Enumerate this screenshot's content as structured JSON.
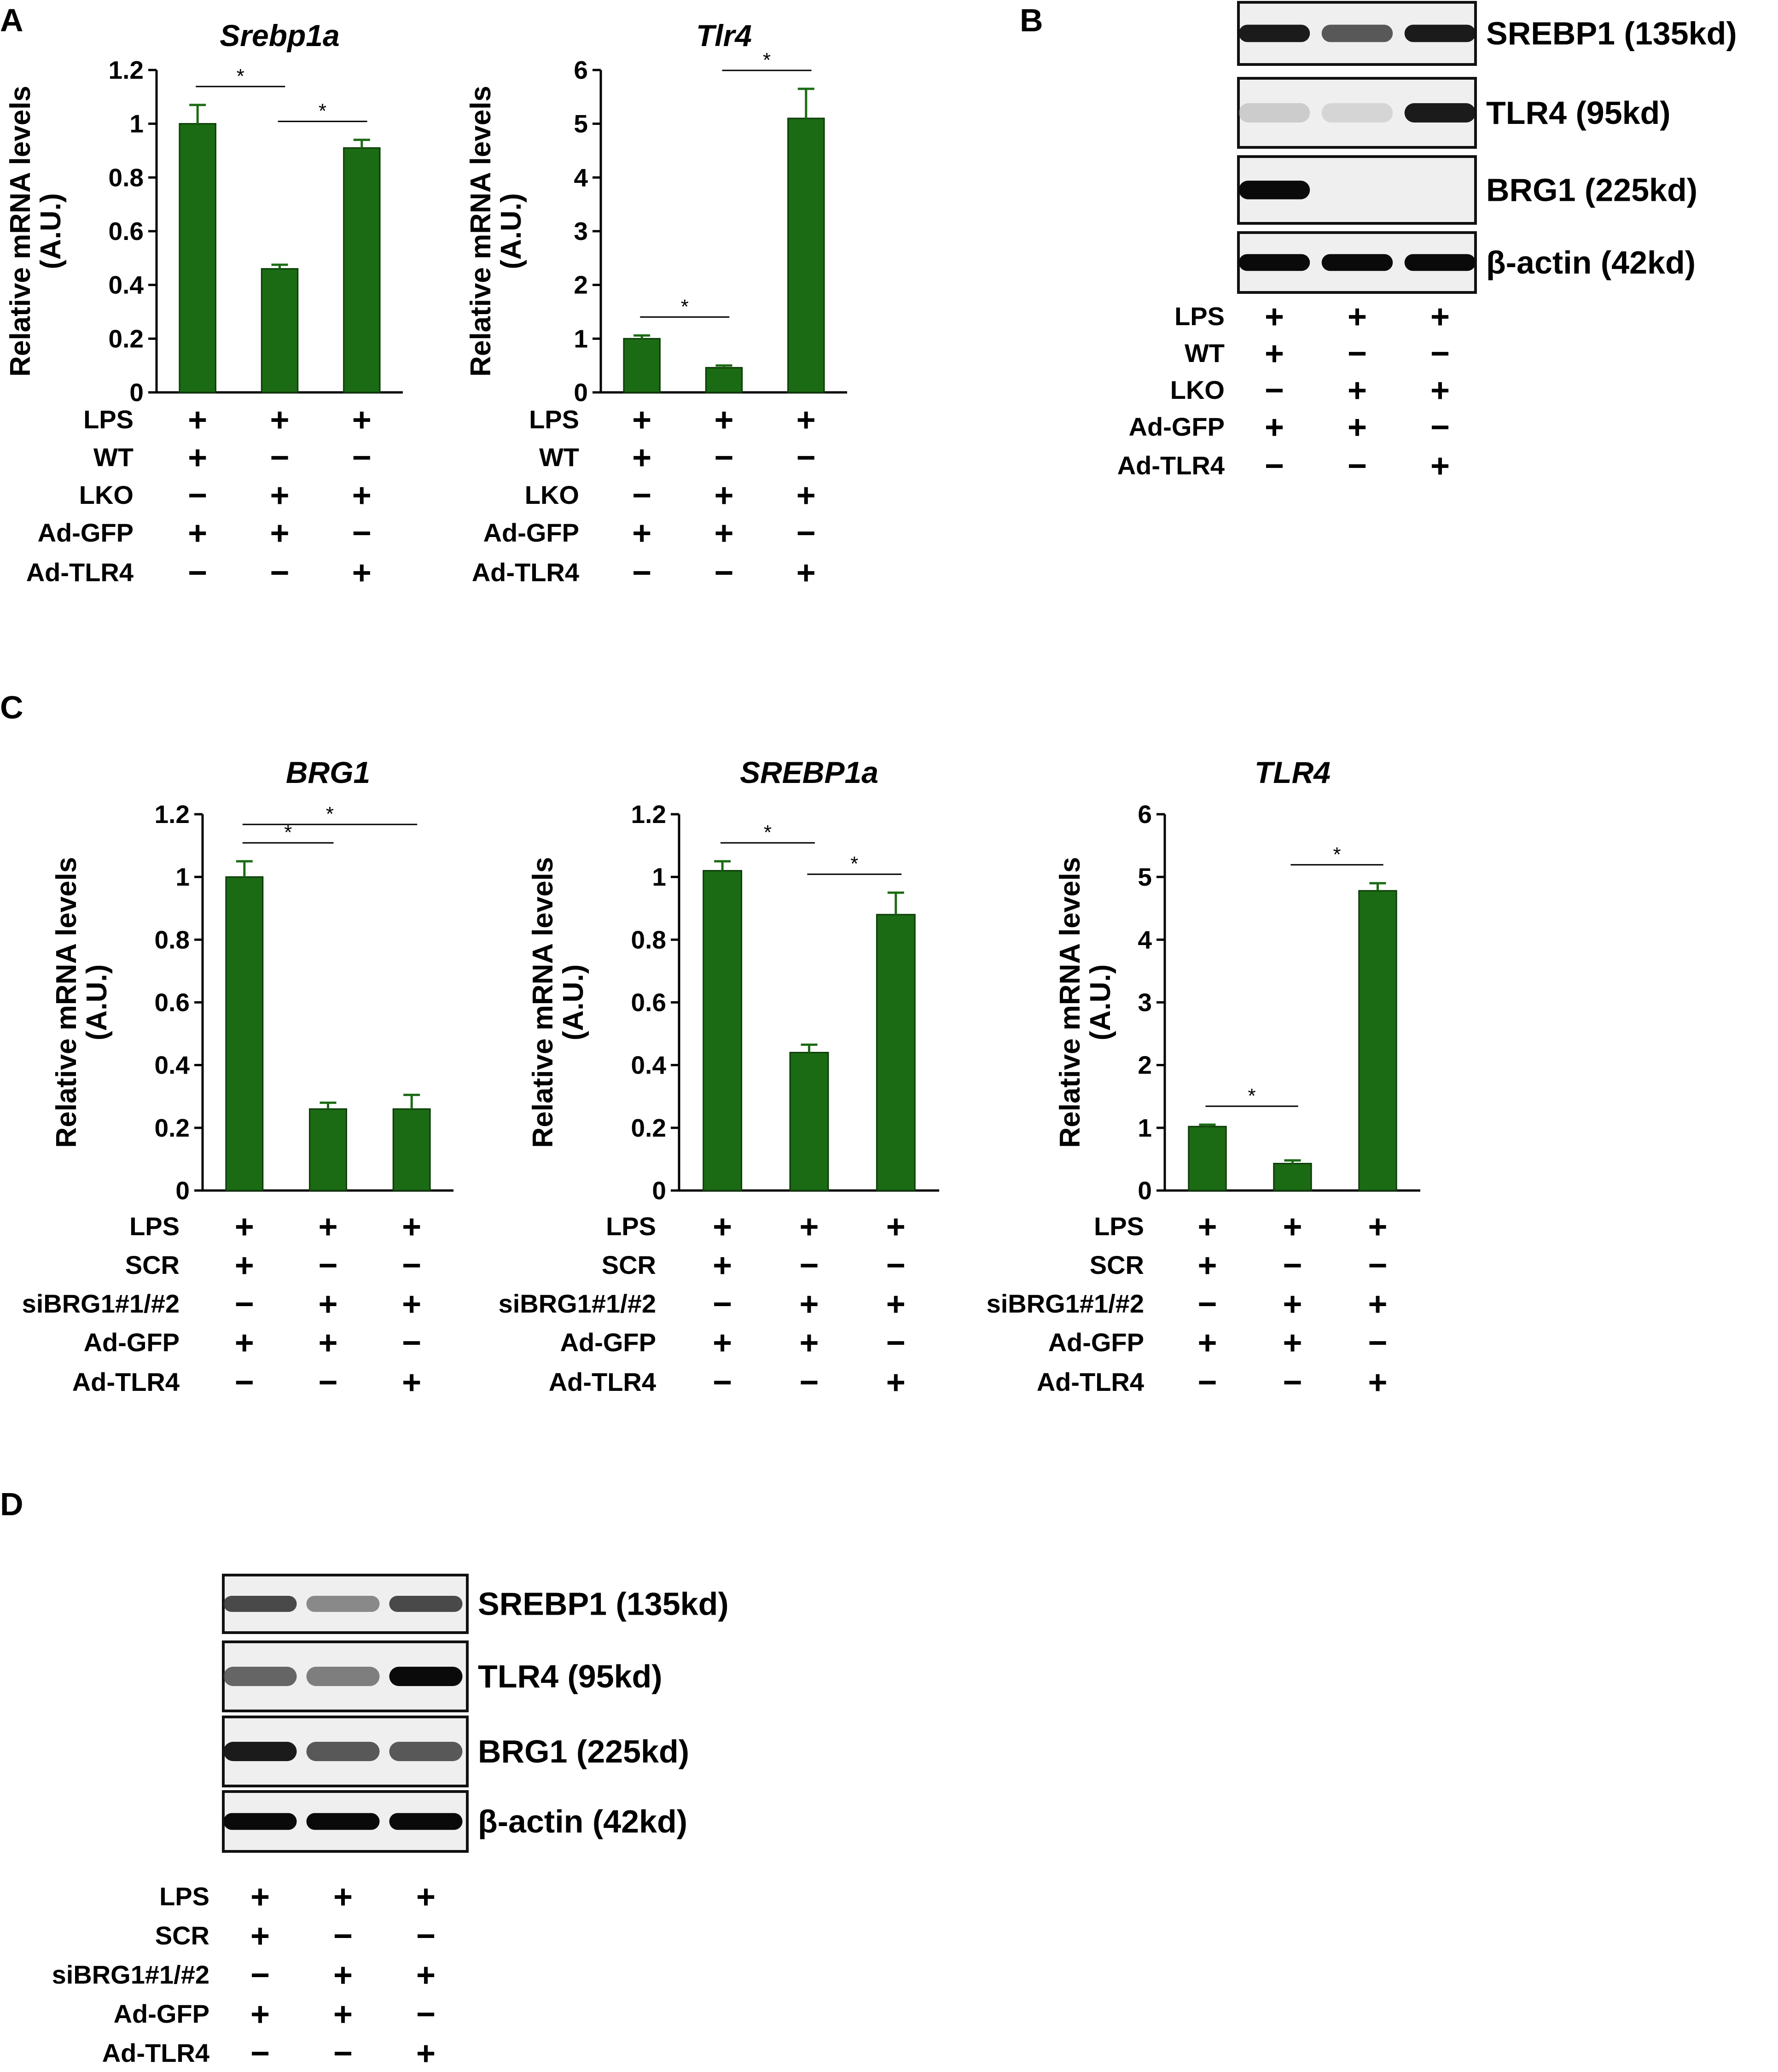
{
  "figure": {
    "bar_color": "#1b6b14",
    "error_color": "#1b6b14",
    "axis_color": "#000000"
  },
  "panels": {
    "A": "A",
    "B": "B",
    "C": "C",
    "D": "D"
  },
  "chart_data": [
    {
      "type": "bar",
      "title": "Srebp1a",
      "ylabel": [
        "Relative mRNA levels",
        "(A.U.)"
      ],
      "ylim": [
        0,
        1.2
      ],
      "yticks": [
        "0",
        "0.2",
        "0.4",
        "0.6",
        "0.8",
        "1",
        "1.2"
      ],
      "values": [
        1.0,
        0.46,
        0.91
      ],
      "errors": [
        0.07,
        0.015,
        0.03
      ],
      "significance": [
        {
          "from": 0,
          "to": 1,
          "label": "*"
        },
        {
          "from": 1,
          "to": 2,
          "label": "*"
        }
      ],
      "conditions": [
        {
          "name": "LPS",
          "marks": [
            "+",
            "+",
            "+"
          ]
        },
        {
          "name": "WT",
          "marks": [
            "+",
            "−",
            "−"
          ]
        },
        {
          "name": "LKO",
          "marks": [
            "−",
            "+",
            "+"
          ]
        },
        {
          "name": "Ad-GFP",
          "marks": [
            "+",
            "+",
            "−"
          ]
        },
        {
          "name": "Ad-TLR4",
          "marks": [
            "−",
            "−",
            "+"
          ]
        }
      ]
    },
    {
      "type": "bar",
      "title": "Tlr4",
      "ylabel": [
        "Relative mRNA levels",
        "(A.U.)"
      ],
      "ylim": [
        0,
        6
      ],
      "yticks": [
        "0",
        "1",
        "2",
        "3",
        "4",
        "5",
        "6"
      ],
      "values": [
        1.0,
        0.46,
        5.1
      ],
      "errors": [
        0.06,
        0.04,
        0.55
      ],
      "significance": [
        {
          "from": 0,
          "to": 1,
          "label": "*"
        },
        {
          "from": 1,
          "to": 2,
          "label": "*"
        }
      ],
      "conditions": [
        {
          "name": "LPS",
          "marks": [
            "+",
            "+",
            "+"
          ]
        },
        {
          "name": "WT",
          "marks": [
            "+",
            "−",
            "−"
          ]
        },
        {
          "name": "LKO",
          "marks": [
            "−",
            "+",
            "+"
          ]
        },
        {
          "name": "Ad-GFP",
          "marks": [
            "+",
            "+",
            "−"
          ]
        },
        {
          "name": "Ad-TLR4",
          "marks": [
            "−",
            "−",
            "+"
          ]
        }
      ]
    },
    {
      "type": "bar",
      "title": "BRG1",
      "ylabel": [
        "Relative mRNA levels",
        "(A.U.)"
      ],
      "ylim": [
        0,
        1.2
      ],
      "yticks": [
        "0",
        "0.2",
        "0.4",
        "0.6",
        "0.8",
        "1",
        "1.2"
      ],
      "values": [
        1.0,
        0.26,
        0.26
      ],
      "errors": [
        0.05,
        0.02,
        0.045
      ],
      "significance": [
        {
          "from": 0,
          "to": 1,
          "label": "*"
        },
        {
          "from": 0,
          "to": 2,
          "label": "*"
        }
      ],
      "conditions": [
        {
          "name": "LPS",
          "marks": [
            "+",
            "+",
            "+"
          ]
        },
        {
          "name": "SCR",
          "marks": [
            "+",
            "−",
            "−"
          ]
        },
        {
          "name": "siBRG1#1/#2",
          "marks": [
            "−",
            "+",
            "+"
          ]
        },
        {
          "name": "Ad-GFP",
          "marks": [
            "+",
            "+",
            "−"
          ]
        },
        {
          "name": "Ad-TLR4",
          "marks": [
            "−",
            "−",
            "+"
          ]
        }
      ]
    },
    {
      "type": "bar",
      "title": "SREBP1a",
      "ylabel": [
        "Relative mRNA levels",
        "(A.U.)"
      ],
      "ylim": [
        0,
        1.2
      ],
      "yticks": [
        "0",
        "0.2",
        "0.4",
        "0.6",
        "0.8",
        "1",
        "1.2"
      ],
      "values": [
        1.02,
        0.44,
        0.88
      ],
      "errors": [
        0.03,
        0.025,
        0.07
      ],
      "significance": [
        {
          "from": 0,
          "to": 1,
          "label": "*"
        },
        {
          "from": 1,
          "to": 2,
          "label": "*"
        }
      ],
      "conditions": [
        {
          "name": "LPS",
          "marks": [
            "+",
            "+",
            "+"
          ]
        },
        {
          "name": "SCR",
          "marks": [
            "+",
            "−",
            "−"
          ]
        },
        {
          "name": "siBRG1#1/#2",
          "marks": [
            "−",
            "+",
            "+"
          ]
        },
        {
          "name": "Ad-GFP",
          "marks": [
            "+",
            "+",
            "−"
          ]
        },
        {
          "name": "Ad-TLR4",
          "marks": [
            "−",
            "−",
            "+"
          ]
        }
      ]
    },
    {
      "type": "bar",
      "title": "TLR4",
      "ylabel": [
        "Relative mRNA levels",
        "(A.U.)"
      ],
      "ylim": [
        0,
        6
      ],
      "yticks": [
        "0",
        "1",
        "2",
        "3",
        "4",
        "5",
        "6"
      ],
      "values": [
        1.02,
        0.43,
        4.78
      ],
      "errors": [
        0.03,
        0.05,
        0.12
      ],
      "significance": [
        {
          "from": 0,
          "to": 1,
          "label": "*"
        },
        {
          "from": 1,
          "to": 2,
          "label": "*"
        }
      ],
      "conditions": [
        {
          "name": "LPS",
          "marks": [
            "+",
            "+",
            "+"
          ]
        },
        {
          "name": "SCR",
          "marks": [
            "+",
            "−",
            "−"
          ]
        },
        {
          "name": "siBRG1#1/#2",
          "marks": [
            "−",
            "+",
            "+"
          ]
        },
        {
          "name": "Ad-GFP",
          "marks": [
            "+",
            "+",
            "−"
          ]
        },
        {
          "name": "Ad-TLR4",
          "marks": [
            "−",
            "−",
            "+"
          ]
        }
      ]
    }
  ],
  "blots": [
    {
      "panel": "B",
      "rows": [
        {
          "label": "SREBP1 (135kd)",
          "intensity": [
            0.95,
            0.75,
            0.95
          ]
        },
        {
          "label": "TLR4 (95kd)",
          "intensity": [
            0.18,
            0.12,
            0.95
          ]
        },
        {
          "label": "BRG1 (225kd)",
          "intensity": [
            1.0,
            0.0,
            0.0
          ]
        },
        {
          "label": "β-actin (42kd)",
          "intensity": [
            1.0,
            1.0,
            1.0
          ]
        }
      ],
      "conditions": [
        {
          "name": "LPS",
          "marks": [
            "+",
            "+",
            "+"
          ]
        },
        {
          "name": "WT",
          "marks": [
            "+",
            "−",
            "−"
          ]
        },
        {
          "name": "LKO",
          "marks": [
            "−",
            "+",
            "+"
          ]
        },
        {
          "name": "Ad-GFP",
          "marks": [
            "+",
            "+",
            "−"
          ]
        },
        {
          "name": "Ad-TLR4",
          "marks": [
            "−",
            "−",
            "+"
          ]
        }
      ]
    },
    {
      "panel": "D",
      "rows": [
        {
          "label": "SREBP1 (135kd)",
          "intensity": [
            0.8,
            0.55,
            0.8
          ]
        },
        {
          "label": "TLR4 (95kd)",
          "intensity": [
            0.7,
            0.6,
            1.0
          ]
        },
        {
          "label": "BRG1 (225kd)",
          "intensity": [
            0.95,
            0.75,
            0.75
          ]
        },
        {
          "label": "β-actin (42kd)",
          "intensity": [
            1.0,
            1.0,
            1.0
          ]
        }
      ],
      "conditions": [
        {
          "name": "LPS",
          "marks": [
            "+",
            "+",
            "+"
          ]
        },
        {
          "name": "SCR",
          "marks": [
            "+",
            "−",
            "−"
          ]
        },
        {
          "name": "siBRG1#1/#2",
          "marks": [
            "−",
            "+",
            "+"
          ]
        },
        {
          "name": "Ad-GFP",
          "marks": [
            "+",
            "+",
            "−"
          ]
        },
        {
          "name": "Ad-TLR4",
          "marks": [
            "−",
            "−",
            "+"
          ]
        }
      ]
    }
  ]
}
